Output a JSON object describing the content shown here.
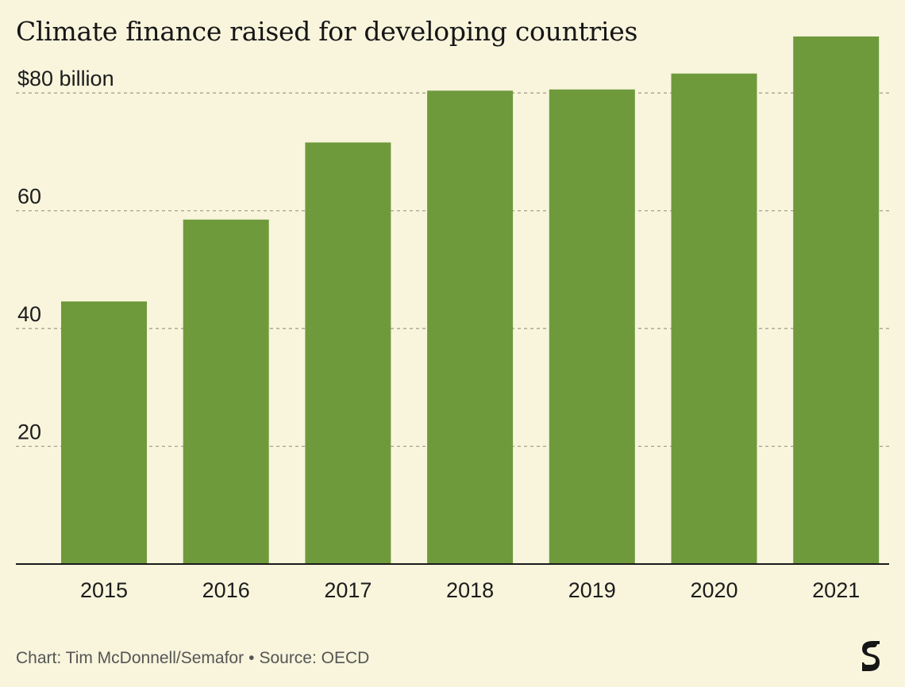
{
  "header": {
    "title": "Climate finance raised for developing countries"
  },
  "footer": {
    "credit": "Chart: Tim McDonnell/Semafor",
    "separator": "•",
    "source": "Source: OECD"
  },
  "logo": {
    "icon": "semafor-s-logo",
    "color": "#161616"
  },
  "chart_data": {
    "type": "bar",
    "title": "Climate finance raised for developing countries",
    "categories": [
      "2015",
      "2016",
      "2017",
      "2018",
      "2019",
      "2020",
      "2021"
    ],
    "values": [
      44.6,
      58.5,
      71.6,
      80.4,
      80.6,
      83.3,
      89.6
    ],
    "ylim": [
      0,
      90
    ],
    "y_ticks": [
      {
        "value": 20,
        "label": "20"
      },
      {
        "value": 40,
        "label": "40"
      },
      {
        "value": 60,
        "label": "60"
      },
      {
        "value": 80,
        "label": "$80 billion"
      }
    ],
    "xlabel": "",
    "ylabel": "",
    "grid": true,
    "legend": "none",
    "colors": {
      "bar": "#6f9a3c",
      "grid": "#9a9a88",
      "axis": "#1a1a1a",
      "background": "#f8f5dc"
    }
  }
}
